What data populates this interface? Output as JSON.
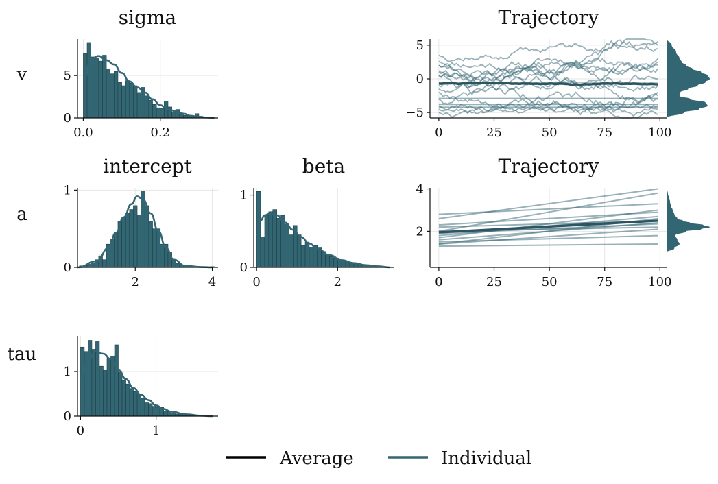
{
  "colors": {
    "accent": "#336673",
    "axis": "#111111",
    "grid": "#e6e6e6",
    "average": "#000000"
  },
  "rows": [
    {
      "key": "v",
      "label": "v"
    },
    {
      "key": "a",
      "label": "a"
    },
    {
      "key": "tau",
      "label": "tau"
    }
  ],
  "legend": {
    "items": [
      {
        "label": "Average",
        "color": "#000000"
      },
      {
        "label": "Individual",
        "color": "#336673"
      }
    ],
    "placement": "bottom-center"
  },
  "chart_data": [
    {
      "id": "sigma-hist",
      "type": "bar",
      "title": "sigma",
      "row": "v",
      "bin_start": 0.0,
      "bin_width": 0.01,
      "values": [
        7.6,
        8.9,
        7.2,
        7.0,
        6.7,
        7.4,
        5.8,
        5.2,
        5.5,
        4.2,
        3.8,
        4.4,
        4.1,
        3.8,
        3.0,
        3.6,
        2.6,
        2.1,
        1.6,
        1.2,
        1.1,
        2.0,
        1.3,
        0.7,
        1.0,
        0.5,
        0.3,
        0.3,
        0.2,
        0.5,
        0.2,
        0.1,
        0.1,
        0.05
      ],
      "kde": {
        "x": [
          0.0,
          0.02,
          0.04,
          0.06,
          0.08,
          0.1,
          0.12,
          0.14,
          0.16,
          0.18,
          0.2,
          0.22,
          0.24,
          0.26,
          0.28,
          0.3,
          0.32,
          0.34
        ],
        "y": [
          4.2,
          7.0,
          7.3,
          6.8,
          6.3,
          5.3,
          4.3,
          3.6,
          3.0,
          2.2,
          1.5,
          1.0,
          0.8,
          0.5,
          0.25,
          0.12,
          0.05,
          0.02
        ]
      },
      "xlim": [
        -0.015,
        0.35
      ],
      "ylim": [
        0,
        9.3
      ],
      "xticks": [
        0.0,
        0.2
      ],
      "xticklabels": [
        "0.0",
        "0.2"
      ],
      "yticks": [
        0,
        5
      ],
      "yticklabels": [
        "0",
        "5"
      ]
    },
    {
      "id": "v-trajectory",
      "type": "line",
      "title": "Trajectory",
      "row": "v",
      "x_range": [
        0,
        99
      ],
      "individual_lines": [
        {
          "start": 2.6,
          "end": 3.0,
          "vol": 0.45,
          "seed": 11
        },
        {
          "start": 3.5,
          "end": 5.5,
          "vol": 0.4,
          "seed": 12
        },
        {
          "start": 1.2,
          "end": 4.5,
          "vol": 0.5,
          "seed": 13
        },
        {
          "start": 2.0,
          "end": 0.0,
          "vol": 0.5,
          "seed": 14
        },
        {
          "start": 1.0,
          "end": 2.0,
          "vol": 0.4,
          "seed": 15
        },
        {
          "start": 0.5,
          "end": 5.0,
          "vol": 0.45,
          "seed": 16
        },
        {
          "start": -1.0,
          "end": 1.5,
          "vol": 0.45,
          "seed": 17
        },
        {
          "start": 0.5,
          "end": -2.0,
          "vol": 0.5,
          "seed": 18
        },
        {
          "start": -2.0,
          "end": -4.0,
          "vol": 0.4,
          "seed": 19
        },
        {
          "start": -3.0,
          "end": -3.0,
          "vol": 0.45,
          "seed": 20
        },
        {
          "start": -4.0,
          "end": -4.5,
          "vol": 0.35,
          "seed": 21
        },
        {
          "start": -5.0,
          "end": -5.3,
          "vol": 0.3,
          "seed": 22
        },
        {
          "start": -4.5,
          "end": -2.5,
          "vol": 0.45,
          "seed": 23
        },
        {
          "start": -1.5,
          "end": -1.0,
          "vol": 0.45,
          "seed": 24
        },
        {
          "start": 2.0,
          "end": 2.5,
          "vol": 0.45,
          "seed": 25
        }
      ],
      "flat_lines": [
        -0.5,
        -2.9,
        -3.8,
        -4.2
      ],
      "average_line": {
        "start": -0.7,
        "end": -0.8,
        "vol": 0.06,
        "seed": 7
      },
      "xlim": [
        -4,
        103
      ],
      "ylim": [
        -5.8,
        5.9
      ],
      "xticks": [
        0,
        25,
        50,
        75,
        100
      ],
      "xticklabels": [
        "0",
        "25",
        "50",
        "75",
        "100"
      ],
      "yticks": [
        5,
        0,
        -5
      ],
      "yticklabels": [
        "5",
        "0",
        "−5"
      ],
      "marginal_density": {
        "y": [
          -6.0,
          -5.0,
          -4.5,
          -4.0,
          -3.5,
          -3.0,
          -2.5,
          -2.0,
          -1.5,
          -1.0,
          -0.5,
          0.0,
          0.5,
          1.0,
          1.5,
          2.0,
          2.5,
          3.0,
          4.0,
          5.0,
          6.0
        ],
        "density": [
          0.0,
          0.4,
          0.75,
          0.95,
          0.9,
          0.55,
          0.3,
          0.32,
          0.5,
          0.72,
          0.9,
          1.0,
          0.95,
          0.8,
          0.6,
          0.45,
          0.35,
          0.3,
          0.22,
          0.12,
          0.0
        ]
      }
    },
    {
      "id": "intercept-hist",
      "type": "bar",
      "title": "intercept",
      "row": "a",
      "bin_start": 0.55,
      "bin_width": 0.1,
      "values": [
        0.02,
        0.03,
        0.04,
        0.06,
        0.1,
        0.15,
        0.1,
        0.3,
        0.36,
        0.45,
        0.6,
        0.65,
        0.7,
        0.75,
        0.8,
        0.68,
        0.99,
        0.8,
        0.6,
        0.5,
        0.5,
        0.3,
        0.3,
        0.2,
        0.1,
        0.05,
        0.03,
        0.02,
        0.02,
        0.01,
        0.01,
        0.01,
        0.0,
        0.0,
        0.01
      ],
      "kde": {
        "x": [
          0.5,
          1.0,
          1.3,
          1.5,
          1.7,
          1.9,
          2.05,
          2.2,
          2.4,
          2.6,
          2.8,
          3.0,
          3.3,
          3.7,
          4.0
        ],
        "y": [
          0.0,
          0.08,
          0.25,
          0.45,
          0.65,
          0.82,
          0.92,
          0.88,
          0.7,
          0.47,
          0.25,
          0.1,
          0.02,
          0.005,
          0.0
        ]
      },
      "xlim": [
        0.5,
        4.15
      ],
      "ylim": [
        0,
        1.03
      ],
      "xticks": [
        2,
        4
      ],
      "xticklabels": [
        "2",
        "4"
      ],
      "yticks": [
        0,
        1
      ],
      "yticklabels": [
        "0",
        "1"
      ]
    },
    {
      "id": "beta-hist",
      "type": "bar",
      "title": "beta",
      "row": "a",
      "bin_start": 0.0,
      "bin_width": 0.1,
      "values": [
        1.05,
        0.42,
        0.72,
        0.77,
        0.8,
        0.68,
        0.72,
        0.6,
        0.45,
        0.58,
        0.45,
        0.3,
        0.35,
        0.28,
        0.3,
        0.27,
        0.22,
        0.18,
        0.15,
        0.12,
        0.1,
        0.09,
        0.08,
        0.06,
        0.05,
        0.04,
        0.03,
        0.02,
        0.02,
        0.02
      ],
      "kde": {
        "x": [
          0.0,
          0.1,
          0.2,
          0.35,
          0.5,
          0.7,
          0.9,
          1.1,
          1.3,
          1.5,
          1.8,
          2.1,
          2.4,
          2.7,
          3.0,
          3.3
        ],
        "y": [
          0.45,
          0.65,
          0.72,
          0.75,
          0.72,
          0.62,
          0.52,
          0.42,
          0.33,
          0.26,
          0.17,
          0.1,
          0.06,
          0.03,
          0.015,
          0.0
        ]
      },
      "xlim": [
        -0.07,
        3.4
      ],
      "ylim": [
        0,
        1.1
      ],
      "xticks": [
        0,
        2
      ],
      "xticklabels": [
        "0",
        "2"
      ],
      "yticks": [
        0,
        1
      ],
      "yticklabels": [
        "0",
        "1"
      ]
    },
    {
      "id": "a-trajectory",
      "type": "line",
      "title": "Trajectory",
      "row": "a",
      "x_range": [
        0,
        99
      ],
      "individual_lines": [
        {
          "start": 2.8,
          "end": 3.3
        },
        {
          "start": 2.6,
          "end": 4.0
        },
        {
          "start": 2.3,
          "end": 2.9
        },
        {
          "start": 2.2,
          "end": 2.5
        },
        {
          "start": 2.0,
          "end": 2.2
        },
        {
          "start": 1.8,
          "end": 2.7
        },
        {
          "start": 1.7,
          "end": 3.0
        },
        {
          "start": 1.6,
          "end": 2.4
        },
        {
          "start": 1.5,
          "end": 1.8
        },
        {
          "start": 1.4,
          "end": 2.6
        },
        {
          "start": 1.3,
          "end": 1.4
        },
        {
          "start": 2.0,
          "end": 3.8
        },
        {
          "start": 1.4,
          "end": 2.1
        },
        {
          "start": 1.9,
          "end": 2.35
        }
      ],
      "average_line": {
        "start": 1.95,
        "end": 2.5
      },
      "xlim": [
        -4,
        103
      ],
      "ylim": [
        0.3,
        4.05
      ],
      "xticks": [
        0,
        25,
        50,
        75,
        100
      ],
      "xticklabels": [
        "0",
        "25",
        "50",
        "75",
        "100"
      ],
      "yticks": [
        2,
        4
      ],
      "yticklabels": [
        "2",
        "4"
      ],
      "marginal_density": {
        "y": [
          1.0,
          1.2,
          1.4,
          1.6,
          1.8,
          2.0,
          2.1,
          2.2,
          2.3,
          2.4,
          2.5,
          2.6,
          2.8,
          3.0,
          3.2,
          3.4,
          3.6,
          3.8,
          4.0
        ],
        "density": [
          0.0,
          0.18,
          0.3,
          0.25,
          0.2,
          0.45,
          0.8,
          1.0,
          0.85,
          0.55,
          0.38,
          0.25,
          0.18,
          0.14,
          0.1,
          0.08,
          0.05,
          0.03,
          0.0
        ]
      }
    },
    {
      "id": "tau-hist",
      "type": "bar",
      "title": "",
      "row": "tau",
      "bin_start": 0.0,
      "bin_width": 0.05,
      "values": [
        1.55,
        1.45,
        1.7,
        1.5,
        1.67,
        1.12,
        1.03,
        1.3,
        1.35,
        1.6,
        1.0,
        0.8,
        0.72,
        0.62,
        0.55,
        0.5,
        0.4,
        0.3,
        0.28,
        0.22,
        0.2,
        0.2,
        0.12,
        0.1,
        0.07,
        0.05,
        0.04,
        0.03,
        0.03,
        0.02,
        0.02,
        0.01,
        0.01,
        0.01,
        0.01
      ],
      "kde": {
        "x": [
          0.0,
          0.1,
          0.2,
          0.3,
          0.4,
          0.5,
          0.6,
          0.7,
          0.8,
          0.9,
          1.0,
          1.1,
          1.2,
          1.4,
          1.6,
          1.75
        ],
        "y": [
          0.8,
          1.25,
          1.45,
          1.4,
          1.28,
          1.05,
          0.83,
          0.63,
          0.48,
          0.36,
          0.24,
          0.16,
          0.1,
          0.04,
          0.01,
          0.0
        ]
      },
      "xlim": [
        -0.04,
        1.82
      ],
      "ylim": [
        0,
        1.8
      ],
      "xticks": [
        0,
        1
      ],
      "xticklabels": [
        "0",
        "1"
      ],
      "yticks": [
        0,
        1
      ],
      "yticklabels": [
        "0",
        "1"
      ]
    }
  ]
}
